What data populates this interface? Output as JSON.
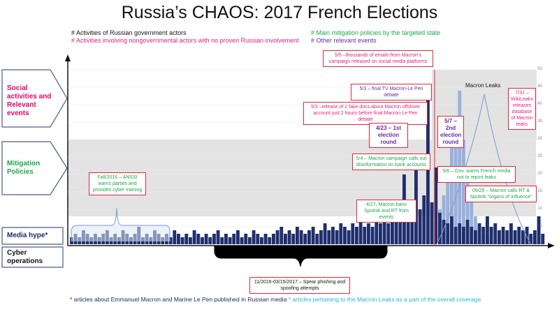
{
  "title": "Russia’s CHAOS: 2017 French Elections",
  "legend": {
    "russian_gov": "# Activities of Russian government actors",
    "nongov": "# Activities involving nongovernmental actors with no proven Russian involvement",
    "mitigation": "# Main mitigation policies by the targeted state",
    "other": "# Other relevant events"
  },
  "lanes": {
    "social": "Social activities and Relevant events",
    "mitigation": "Mitigation Policies",
    "media": "Media hype*",
    "cyber": "Cyber operations"
  },
  "events": {
    "e_5_5": "5/5 –thousands of emails from Macron’s campaign released on social media platforms",
    "e_5_3_debate": "5/3 – final TV Macron-Le Pen debate",
    "e_5_3_fake": "5/3 –release of 2 fake docs about Macron offshore account just 2 hours before final Macron-Le Pen debate",
    "e_4_23": "4/23 – 1st election round",
    "e_5_7": "5/7 – 2nd election round",
    "macron_leaks": "Macron Leaks",
    "e_7_31": "7/31 – WikiLeaks releases database of Macron leaks",
    "e_5_4": "5/4 – Macron campaign calls out disinformation on bank accounts",
    "e_5_6": "5/6 – Gov. warns French media not to report leaks",
    "e_fall": "Fall/2016 – ANSSI warns parties and provides cyber training",
    "e_4_27": "4/27, Macron bans Sputnik and RT from events",
    "e_5_29": "05/29 – Macron calls RT & Sputnik “organs of influence”",
    "e_spear": "11/2016-03/15/2017 – Spear phishing and spoofing attempts"
  },
  "footnote": {
    "part1": "* articles about Emmanuel Macron and Marine Le Pen published in Russian media",
    "part2": " * articles pertaining to the Macron Leaks as a part of the overall coverage"
  },
  "colors": {
    "bars_dark": "#1f2f6e",
    "bars_light": "#9ab0dc",
    "band_gray": "#e3e3e3",
    "event_border": "#e0283a",
    "lane_border": "#4a5a8a"
  },
  "chart_data": {
    "type": "bar",
    "ylim": [
      0,
      50
    ],
    "yticks": [
      5,
      10,
      15,
      20,
      25,
      30,
      35,
      40,
      45,
      50
    ],
    "series": [
      {
        "values": [
          2,
          3,
          2,
          4,
          3,
          2,
          3,
          2,
          3,
          4,
          2,
          3,
          2,
          4,
          3,
          2,
          3,
          5,
          2,
          3,
          2,
          4,
          3,
          2,
          3,
          2,
          4,
          3,
          2,
          3,
          2,
          4,
          3,
          2,
          3,
          2,
          3,
          4,
          2,
          3,
          2,
          3,
          4,
          2,
          3,
          2,
          4,
          3,
          2,
          3,
          2,
          3,
          4,
          5,
          3,
          4,
          3,
          5,
          4,
          3,
          4,
          5,
          3,
          4,
          6,
          4,
          5,
          4,
          6,
          5,
          4,
          6,
          5,
          7,
          5,
          6,
          5,
          7,
          6,
          8,
          6,
          7,
          8,
          10,
          20,
          8,
          12,
          24,
          10,
          14,
          44,
          12,
          22,
          9,
          7,
          6,
          8,
          5,
          6,
          5,
          7,
          5,
          4,
          6,
          5,
          8,
          5,
          6,
          4,
          5,
          4,
          6,
          4,
          5,
          4,
          5,
          3,
          4,
          8,
          3
        ]
      },
      {
        "values": [
          0,
          0,
          0,
          0,
          0,
          0,
          0,
          0,
          0,
          0,
          0,
          0,
          0,
          0,
          0,
          0,
          0,
          0,
          0,
          0,
          0,
          0,
          0,
          0,
          0,
          0,
          0,
          0,
          0,
          0,
          0,
          0,
          0,
          0,
          0,
          0,
          0,
          0,
          0,
          0,
          0,
          0,
          0,
          0,
          0,
          0,
          0,
          0,
          0,
          0,
          0,
          0,
          0,
          0,
          0,
          0,
          0,
          0,
          0,
          0,
          0,
          0,
          0,
          0,
          0,
          0,
          0,
          0,
          0,
          0,
          0,
          0,
          0,
          0,
          0,
          0,
          0,
          0,
          0,
          0,
          0,
          0,
          0,
          0,
          0,
          0,
          0,
          0,
          0,
          0,
          0,
          0,
          6,
          10,
          14,
          20,
          28,
          36,
          44,
          30,
          22,
          14,
          8,
          5,
          3,
          2,
          1,
          1,
          0,
          0,
          0,
          0,
          0,
          0,
          0,
          0,
          2,
          1,
          1,
          0
        ]
      }
    ]
  }
}
